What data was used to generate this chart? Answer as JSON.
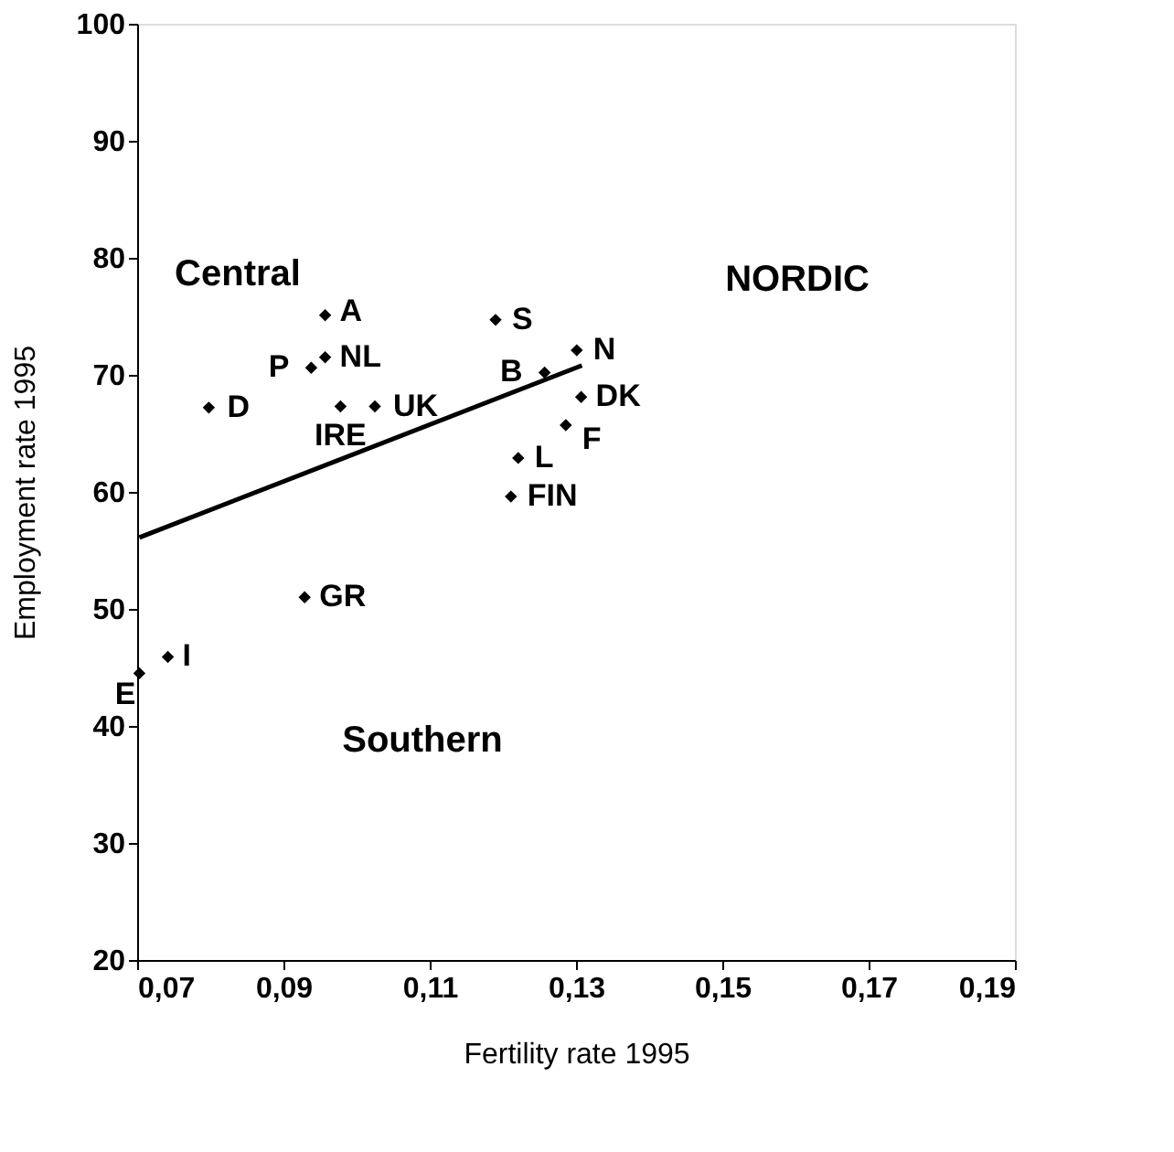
{
  "chart_data": {
    "type": "scatter",
    "xlabel": "Fertility rate 1995",
    "ylabel": "Employment rate 1995",
    "xlim": [
      0.07,
      0.19
    ],
    "xticks": [
      {
        "value": 0.07,
        "label": "0,07"
      },
      {
        "value": 0.09,
        "label": "0,09"
      },
      {
        "value": 0.11,
        "label": "0,11"
      },
      {
        "value": 0.13,
        "label": "0,13"
      },
      {
        "value": 0.15,
        "label": "0,15"
      },
      {
        "value": 0.17,
        "label": "0,17"
      },
      {
        "value": 0.19,
        "label": "0,19"
      }
    ],
    "ylim": [
      20,
      100
    ],
    "yticks": [
      20,
      30,
      40,
      50,
      60,
      70,
      80,
      90,
      100
    ],
    "grid": false,
    "series": [
      {
        "marker": "diamond",
        "color": "#000000",
        "x": [
          0.0957,
          0.0957,
          0.0938,
          0.0798,
          0.0978,
          0.1025,
          0.119,
          0.1301,
          0.1257,
          0.1307,
          0.1286,
          0.1221,
          0.1211,
          0.0929,
          0.0742,
          0.0703
        ],
        "values": [
          75.1,
          71.5,
          70.6,
          67.2,
          67.3,
          67.3,
          74.7,
          72.1,
          70.2,
          68.1,
          65.7,
          62.9,
          59.6,
          51.0,
          45.9,
          44.5
        ],
        "value_labels": [
          "A",
          "NL",
          "P",
          "D",
          "IRE",
          "UK",
          "S",
          "N",
          "B",
          "DK",
          "F",
          "L",
          "FIN",
          "GR",
          "I",
          "E"
        ]
      },
      {
        "type": "line",
        "marker": "none",
        "color": "#000000",
        "x": [
          0.0703,
          0.1308
        ],
        "values": [
          56.1,
          70.8
        ],
        "line_style": "solid"
      }
    ],
    "annotations": [
      "Central",
      "NORDIC",
      "Southern"
    ]
  }
}
